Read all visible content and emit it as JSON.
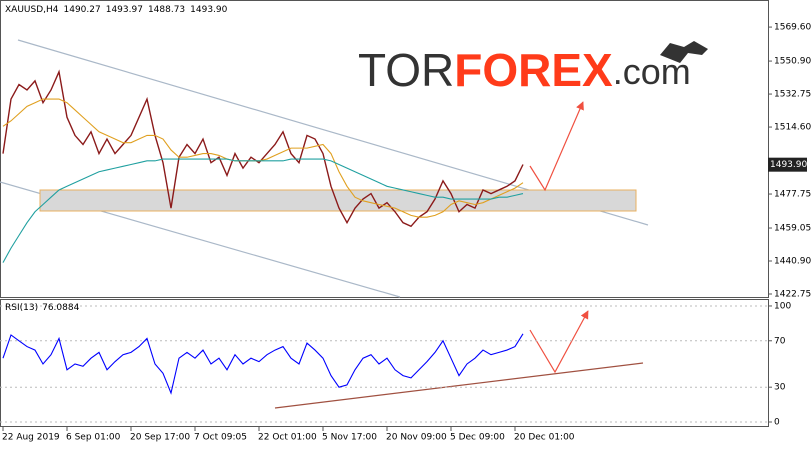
{
  "chart_data": [
    {
      "type": "line",
      "symbol": "XAUUSD,H4",
      "ohlc": [
        {
          "value": 1490.27,
          "label": "1490.27"
        },
        {
          "value": 1493.97,
          "label": "1493.97"
        },
        {
          "value": 1488.73,
          "label": "1488.73"
        },
        {
          "value": 1493.9,
          "label": "1493.90"
        }
      ],
      "last_price": {
        "value": 1493.9,
        "label": "1493.90"
      },
      "logo": [
        "TOR",
        "FOREX",
        ".com"
      ],
      "categories": [
        "22 Aug 2019",
        null,
        null,
        null,
        null,
        null,
        null,
        null,
        "6 Sep 01:00",
        null,
        null,
        null,
        null,
        null,
        null,
        null,
        "20 Sep 17:00",
        null,
        null,
        null,
        null,
        null,
        null,
        null,
        "7 Oct 09:05",
        null,
        null,
        null,
        null,
        null,
        null,
        null,
        "22 Oct 01:00",
        null,
        null,
        null,
        null,
        null,
        null,
        null,
        "5 Nov 17:00",
        null,
        null,
        null,
        null,
        null,
        null,
        null,
        "20 Nov 09:00",
        null,
        null,
        null,
        null,
        null,
        null,
        null,
        "5 Dec 09:00",
        null,
        null,
        null,
        null,
        null,
        null,
        null,
        "20 Dec 01:00",
        null
      ],
      "series": [
        {
          "color": "#8b1a1a",
          "values": [
            1500,
            1530,
            1538,
            1535,
            1540,
            1528,
            1535,
            1545,
            1520,
            1510,
            1505,
            1512,
            1500,
            1508,
            1500,
            1505,
            1510,
            1520,
            1530,
            1510,
            1495,
            1470,
            1498,
            1505,
            1500,
            1508,
            1495,
            1498,
            1488,
            1500,
            1492,
            1498,
            1495,
            1500,
            1505,
            1512,
            1500,
            1495,
            1510,
            1508,
            1500,
            1482,
            1470,
            1462,
            1470,
            1475,
            1478,
            1470,
            1473,
            1468,
            1462,
            1460,
            1465,
            1468,
            1475,
            1485,
            1478,
            1468,
            1472,
            1470,
            1480,
            1478,
            1480,
            1482,
            1485,
            1494
          ]
        },
        {
          "color": "#e0a020",
          "values": [
            1515,
            1518,
            1522,
            1526,
            1528,
            1530,
            1530,
            1530,
            1528,
            1524,
            1520,
            1516,
            1512,
            1510,
            1508,
            1506,
            1506,
            1508,
            1510,
            1510,
            1508,
            1502,
            1498,
            1498,
            1499,
            1500,
            1500,
            1499,
            1497,
            1496,
            1496,
            1496,
            1496,
            1497,
            1499,
            1501,
            1503,
            1503,
            1503,
            1504,
            1505,
            1500,
            1490,
            1482,
            1476,
            1474,
            1473,
            1472,
            1471,
            1470,
            1468,
            1466,
            1465,
            1465,
            1466,
            1468,
            1472,
            1474,
            1473,
            1472,
            1473,
            1475,
            1477,
            1479,
            1481,
            1484
          ]
        },
        {
          "color": "#20a0a0",
          "values": [
            1440,
            1448,
            1455,
            1462,
            1468,
            1472,
            1476,
            1480,
            1482,
            1484,
            1486,
            1488,
            1490,
            1491,
            1492,
            1493,
            1494,
            1495,
            1496,
            1496,
            1497,
            1497,
            1497,
            1497,
            1497,
            1497,
            1497,
            1497,
            1497,
            1496,
            1496,
            1496,
            1496,
            1496,
            1496,
            1496,
            1497,
            1497,
            1497,
            1497,
            1497,
            1496,
            1494,
            1492,
            1490,
            1488,
            1486,
            1484,
            1482,
            1481,
            1480,
            1479,
            1478,
            1477,
            1476,
            1476,
            1475,
            1475,
            1475,
            1475,
            1475,
            1475,
            1476,
            1476,
            1477,
            1478
          ]
        }
      ],
      "ylim": [
        1421.1,
        1584.5
      ],
      "yticks": [
        {
          "value": 1569.6,
          "label": "1569.60"
        },
        {
          "value": 1550.9,
          "label": "1550.90"
        },
        1532.75,
        {
          "value": 1514.6,
          "label": "1514.60"
        },
        1477.75,
        1459.05,
        {
          "value": 1440.9,
          "label": "1440.90"
        },
        1422.75
      ]
    },
    {
      "type": "line",
      "indicator": "RSI(13)",
      "indicator_value": 76.0884,
      "series": [
        {
          "color": "#0000ff",
          "values": [
            55,
            75,
            70,
            65,
            62,
            50,
            58,
            72,
            45,
            50,
            48,
            55,
            60,
            45,
            52,
            58,
            60,
            65,
            72,
            50,
            42,
            25,
            55,
            60,
            55,
            62,
            50,
            55,
            45,
            58,
            50,
            55,
            52,
            58,
            62,
            65,
            55,
            50,
            68,
            62,
            55,
            40,
            30,
            32,
            45,
            55,
            58,
            50,
            55,
            45,
            40,
            38,
            45,
            52,
            60,
            70,
            55,
            40,
            50,
            55,
            62,
            58,
            60,
            62,
            65,
            76
          ]
        }
      ],
      "ylim": [
        -4.3,
        106
      ],
      "yticks": [
        100,
        70,
        30,
        0
      ]
    }
  ]
}
